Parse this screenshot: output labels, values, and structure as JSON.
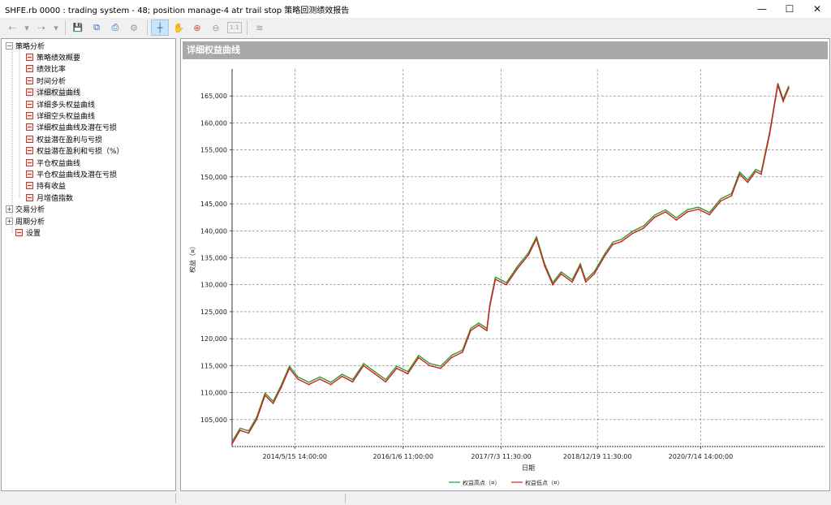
{
  "window": {
    "title": "SHFE.rb 0000 : trading system - 48; position manage-4 atr trail stop 策略回测绩效报告",
    "minimize_glyph": "—",
    "maximize_glyph": "☐",
    "close_glyph": "✕"
  },
  "toolbar": {
    "buttons": [
      {
        "name": "back-icon",
        "glyph": "⇠"
      },
      {
        "name": "dropdown-icon",
        "glyph": "▾"
      },
      {
        "name": "forward-icon",
        "glyph": "⇢"
      },
      {
        "name": "dropdown-icon",
        "glyph": "▾"
      },
      {
        "name": "save-icon",
        "glyph": "💾"
      },
      {
        "name": "copy-icon",
        "glyph": "⧉"
      },
      {
        "name": "print-icon",
        "glyph": "⎙"
      },
      {
        "name": "settings-gear-icon",
        "glyph": "⚙"
      },
      {
        "name": "crosshair-cursor-icon",
        "glyph": "┼"
      },
      {
        "name": "pan-hand-icon",
        "glyph": "✋"
      },
      {
        "name": "zoom-in-icon",
        "glyph": "⊕"
      },
      {
        "name": "zoom-out-icon",
        "glyph": "⊖"
      },
      {
        "name": "zoom-reset-icon",
        "glyph": "1:1"
      },
      {
        "name": "chart-style-icon",
        "glyph": "≋"
      }
    ]
  },
  "tree": {
    "root_label": "策略分析",
    "root_toggle": "−",
    "children": [
      "策略绩效概要",
      "绩效比率",
      "时间分析",
      "详细权益曲线",
      "详细多头权益曲线",
      "详细空头权益曲线",
      "详细权益曲线及潜在亏损",
      "权益潜在盈利与亏损",
      "权益潜在盈利和亏损（%）",
      "平仓权益曲线",
      "平仓权益曲线及潜在亏损",
      "持有收益",
      "月增值指数"
    ],
    "collapsed_groups": [
      {
        "label": "交易分析",
        "toggle": "+"
      },
      {
        "label": "周期分析",
        "toggle": "+"
      }
    ],
    "settings_label": "设置",
    "selected_index": 3
  },
  "panel": {
    "header": "详细权益曲线"
  },
  "chart_data": {
    "type": "line",
    "title": "",
    "xlabel": "日期",
    "ylabel": "权益（¤）",
    "ylim": [
      100000,
      170000
    ],
    "yticks": [
      105000,
      110000,
      115000,
      120000,
      125000,
      130000,
      135000,
      140000,
      145000,
      150000,
      155000,
      160000,
      165000
    ],
    "ytick_labels": [
      "105,000",
      "110,000",
      "115,000",
      "120,000",
      "125,000",
      "130,000",
      "135,000",
      "140,000",
      "145,000",
      "150,000",
      "155,000",
      "160,000",
      "165,000"
    ],
    "xlim": [
      "2013-06-01",
      "2022-06-01"
    ],
    "xticks": [
      "2014-05-15",
      "2016-01-06",
      "2017-07-03",
      "2018-12-19",
      "2020-07-14"
    ],
    "xtick_labels": [
      "2014/5/15 14:00:00",
      "2016/1/6 11:00:00",
      "2017/7/3 11:30:00",
      "2018/12/19 11:30:00",
      "2020/7/14 14:00:00"
    ],
    "grid": true,
    "legend_position": "bottom-center",
    "series": [
      {
        "name": "权益高点（¤）",
        "color": "#2e9a2e"
      },
      {
        "name": "权益低点（¤）",
        "color": "#d21f1f"
      }
    ],
    "points": [
      [
        "2013-06-01",
        100500
      ],
      [
        "2013-07-15",
        103000
      ],
      [
        "2013-09-01",
        102500
      ],
      [
        "2013-10-15",
        105000
      ],
      [
        "2013-12-01",
        109500
      ],
      [
        "2014-01-15",
        108000
      ],
      [
        "2014-03-01",
        111000
      ],
      [
        "2014-04-15",
        114500
      ],
      [
        "2014-06-01",
        112500
      ],
      [
        "2014-08-01",
        111500
      ],
      [
        "2014-10-01",
        112500
      ],
      [
        "2014-12-01",
        111500
      ],
      [
        "2015-02-01",
        113000
      ],
      [
        "2015-04-01",
        112000
      ],
      [
        "2015-06-01",
        115000
      ],
      [
        "2015-08-01",
        113500
      ],
      [
        "2015-10-01",
        112000
      ],
      [
        "2015-12-01",
        114500
      ],
      [
        "2016-02-01",
        113500
      ],
      [
        "2016-04-01",
        116500
      ],
      [
        "2016-06-01",
        115000
      ],
      [
        "2016-08-01",
        114500
      ],
      [
        "2016-10-01",
        116500
      ],
      [
        "2016-12-01",
        117500
      ],
      [
        "2017-01-15",
        121500
      ],
      [
        "2017-03-01",
        122500
      ],
      [
        "2017-04-15",
        121500
      ],
      [
        "2017-05-01",
        126000
      ],
      [
        "2017-06-01",
        131000
      ],
      [
        "2017-08-01",
        130000
      ],
      [
        "2017-10-01",
        133000
      ],
      [
        "2017-12-01",
        135500
      ],
      [
        "2018-01-15",
        138500
      ],
      [
        "2018-03-01",
        133500
      ],
      [
        "2018-04-15",
        130000
      ],
      [
        "2018-06-01",
        132000
      ],
      [
        "2018-08-01",
        130500
      ],
      [
        "2018-09-15",
        133500
      ],
      [
        "2018-10-15",
        130500
      ],
      [
        "2018-12-01",
        132000
      ],
      [
        "2019-02-01",
        135500
      ],
      [
        "2019-03-15",
        137500
      ],
      [
        "2019-05-01",
        138000
      ],
      [
        "2019-07-01",
        139500
      ],
      [
        "2019-09-01",
        140500
      ],
      [
        "2019-11-01",
        142500
      ],
      [
        "2020-01-01",
        143500
      ],
      [
        "2020-03-01",
        142000
      ],
      [
        "2020-05-01",
        143500
      ],
      [
        "2020-07-01",
        144000
      ],
      [
        "2020-09-01",
        143000
      ],
      [
        "2020-11-01",
        145500
      ],
      [
        "2021-01-01",
        146500
      ],
      [
        "2021-02-15",
        150500
      ],
      [
        "2021-04-01",
        149000
      ],
      [
        "2021-05-15",
        151000
      ],
      [
        "2021-06-15",
        150500
      ],
      [
        "2021-08-01",
        158000
      ],
      [
        "2021-09-15",
        167000
      ],
      [
        "2021-10-15",
        164000
      ],
      [
        "2021-11-15",
        166500
      ]
    ]
  }
}
